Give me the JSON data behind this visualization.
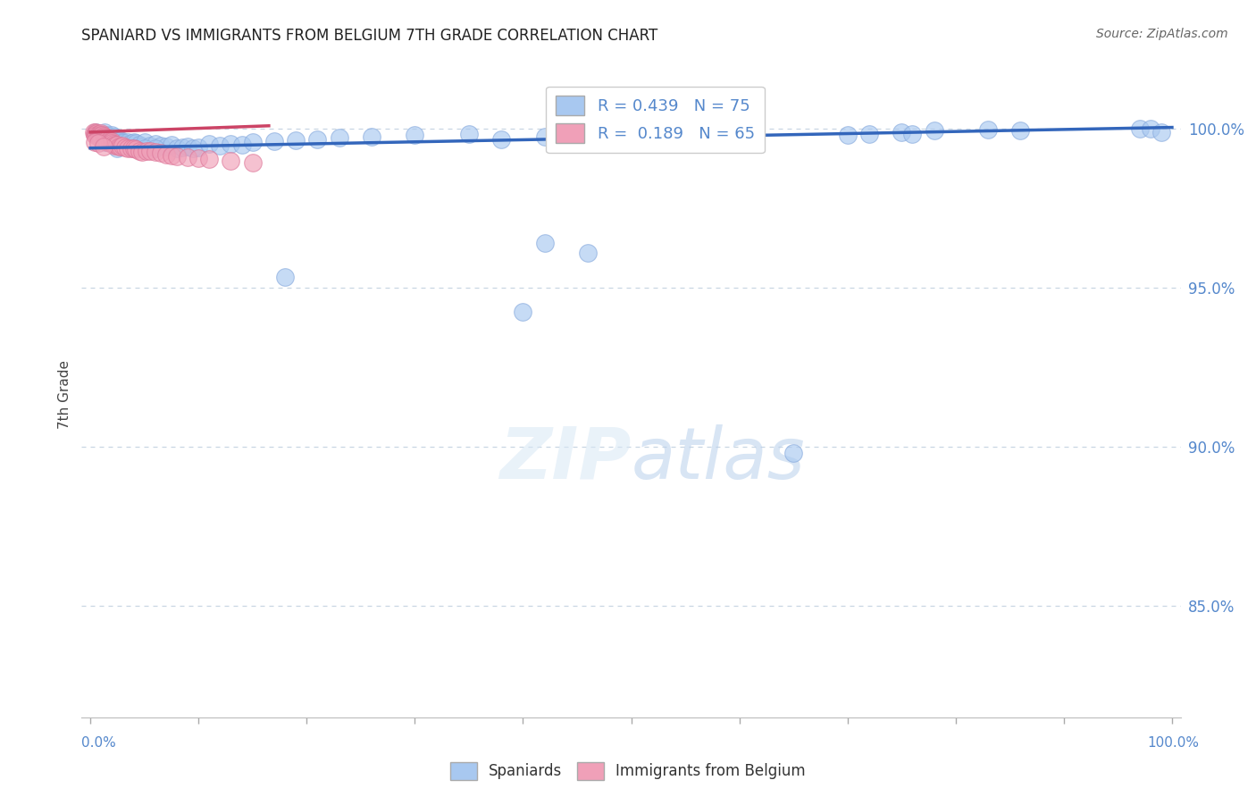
{
  "title": "SPANIARD VS IMMIGRANTS FROM BELGIUM 7TH GRADE CORRELATION CHART",
  "source": "Source: ZipAtlas.com",
  "ylabel": "7th Grade",
  "watermark": "ZIPatlas",
  "legend_blue_label": "Spaniards",
  "legend_pink_label": "Immigrants from Belgium",
  "R_blue": 0.439,
  "N_blue": 75,
  "R_pink": 0.189,
  "N_pink": 65,
  "blue_color": "#A8C8F0",
  "blue_edge_color": "#88AADD",
  "pink_color": "#F0A0B8",
  "pink_edge_color": "#DD7799",
  "blue_line_color": "#3366BB",
  "pink_line_color": "#CC4466",
  "ytick_labels": [
    "85.0%",
    "90.0%",
    "95.0%",
    "100.0%"
  ],
  "ytick_values": [
    0.85,
    0.9,
    0.95,
    1.0
  ],
  "ymin": 0.815,
  "ymax": 1.018,
  "xmin": -0.008,
  "xmax": 1.008,
  "blue_x": [
    0.005,
    0.008,
    0.01,
    0.01,
    0.012,
    0.013,
    0.015,
    0.015,
    0.016,
    0.018,
    0.02,
    0.02,
    0.022,
    0.023,
    0.025,
    0.025,
    0.027,
    0.028,
    0.03,
    0.03,
    0.032,
    0.035,
    0.038,
    0.04,
    0.042,
    0.045,
    0.048,
    0.05,
    0.055,
    0.06,
    0.065,
    0.07,
    0.075,
    0.08,
    0.085,
    0.09,
    0.095,
    0.1,
    0.11,
    0.12,
    0.13,
    0.14,
    0.15,
    0.17,
    0.19,
    0.21,
    0.23,
    0.26,
    0.3,
    0.35,
    0.38,
    0.42,
    0.45,
    0.49,
    0.52,
    0.42,
    0.46,
    0.7,
    0.72,
    0.75,
    0.76,
    0.78,
    0.83,
    0.86,
    0.97,
    0.98,
    0.99,
    0.015,
    0.025,
    0.04,
    0.05,
    0.06,
    0.18,
    0.4,
    0.65
  ],
  "blue_y": [
    0.999,
    0.998,
    0.9985,
    0.9975,
    0.997,
    0.999,
    0.998,
    0.996,
    0.997,
    0.9975,
    0.9965,
    0.998,
    0.9975,
    0.996,
    0.997,
    0.9955,
    0.996,
    0.9965,
    0.996,
    0.9955,
    0.995,
    0.9958,
    0.9955,
    0.996,
    0.9955,
    0.995,
    0.9945,
    0.996,
    0.9948,
    0.9952,
    0.9948,
    0.9945,
    0.995,
    0.994,
    0.9942,
    0.9945,
    0.994,
    0.9942,
    0.9952,
    0.9948,
    0.9952,
    0.995,
    0.9958,
    0.9962,
    0.9965,
    0.9968,
    0.9972,
    0.9975,
    0.998,
    0.9985,
    0.9968,
    0.9975,
    0.9978,
    0.9982,
    0.9985,
    0.964,
    0.961,
    0.998,
    0.9985,
    0.999,
    0.9985,
    0.9995,
    0.9998,
    0.9995,
    1.0,
    1.0,
    0.999,
    0.996,
    0.994,
    0.9938,
    0.9938,
    0.994,
    0.9535,
    0.9425,
    0.898
  ],
  "pink_x": [
    0.003,
    0.004,
    0.004,
    0.005,
    0.005,
    0.006,
    0.006,
    0.007,
    0.007,
    0.008,
    0.008,
    0.008,
    0.009,
    0.009,
    0.01,
    0.01,
    0.01,
    0.01,
    0.011,
    0.011,
    0.012,
    0.012,
    0.013,
    0.013,
    0.014,
    0.014,
    0.015,
    0.015,
    0.016,
    0.016,
    0.017,
    0.018,
    0.018,
    0.019,
    0.02,
    0.02,
    0.021,
    0.022,
    0.023,
    0.025,
    0.026,
    0.028,
    0.03,
    0.032,
    0.035,
    0.038,
    0.04,
    0.042,
    0.045,
    0.048,
    0.052,
    0.055,
    0.06,
    0.065,
    0.07,
    0.075,
    0.08,
    0.09,
    0.1,
    0.11,
    0.13,
    0.15,
    0.004,
    0.007,
    0.012
  ],
  "pink_y": [
    0.999,
    0.9985,
    0.998,
    0.999,
    0.9985,
    0.9988,
    0.9982,
    0.998,
    0.9975,
    0.9985,
    0.9978,
    0.9972,
    0.9982,
    0.9975,
    0.9988,
    0.9982,
    0.9975,
    0.9968,
    0.998,
    0.9973,
    0.9978,
    0.997,
    0.9975,
    0.9968,
    0.9972,
    0.9965,
    0.997,
    0.9963,
    0.9968,
    0.996,
    0.9965,
    0.9962,
    0.9955,
    0.9958,
    0.9962,
    0.9955,
    0.9952,
    0.9948,
    0.995,
    0.995,
    0.9945,
    0.9945,
    0.9948,
    0.9942,
    0.994,
    0.9938,
    0.9938,
    0.9935,
    0.993,
    0.9928,
    0.9932,
    0.993,
    0.9928,
    0.9925,
    0.992,
    0.9918,
    0.9915,
    0.991,
    0.9908,
    0.9905,
    0.99,
    0.9895,
    0.996,
    0.9955,
    0.9945
  ],
  "blue_trend_x": [
    0.0,
    1.0
  ],
  "blue_trend_y": [
    0.994,
    1.0005
  ],
  "pink_trend_x": [
    0.0,
    0.165
  ],
  "pink_trend_y": [
    0.999,
    1.001
  ]
}
